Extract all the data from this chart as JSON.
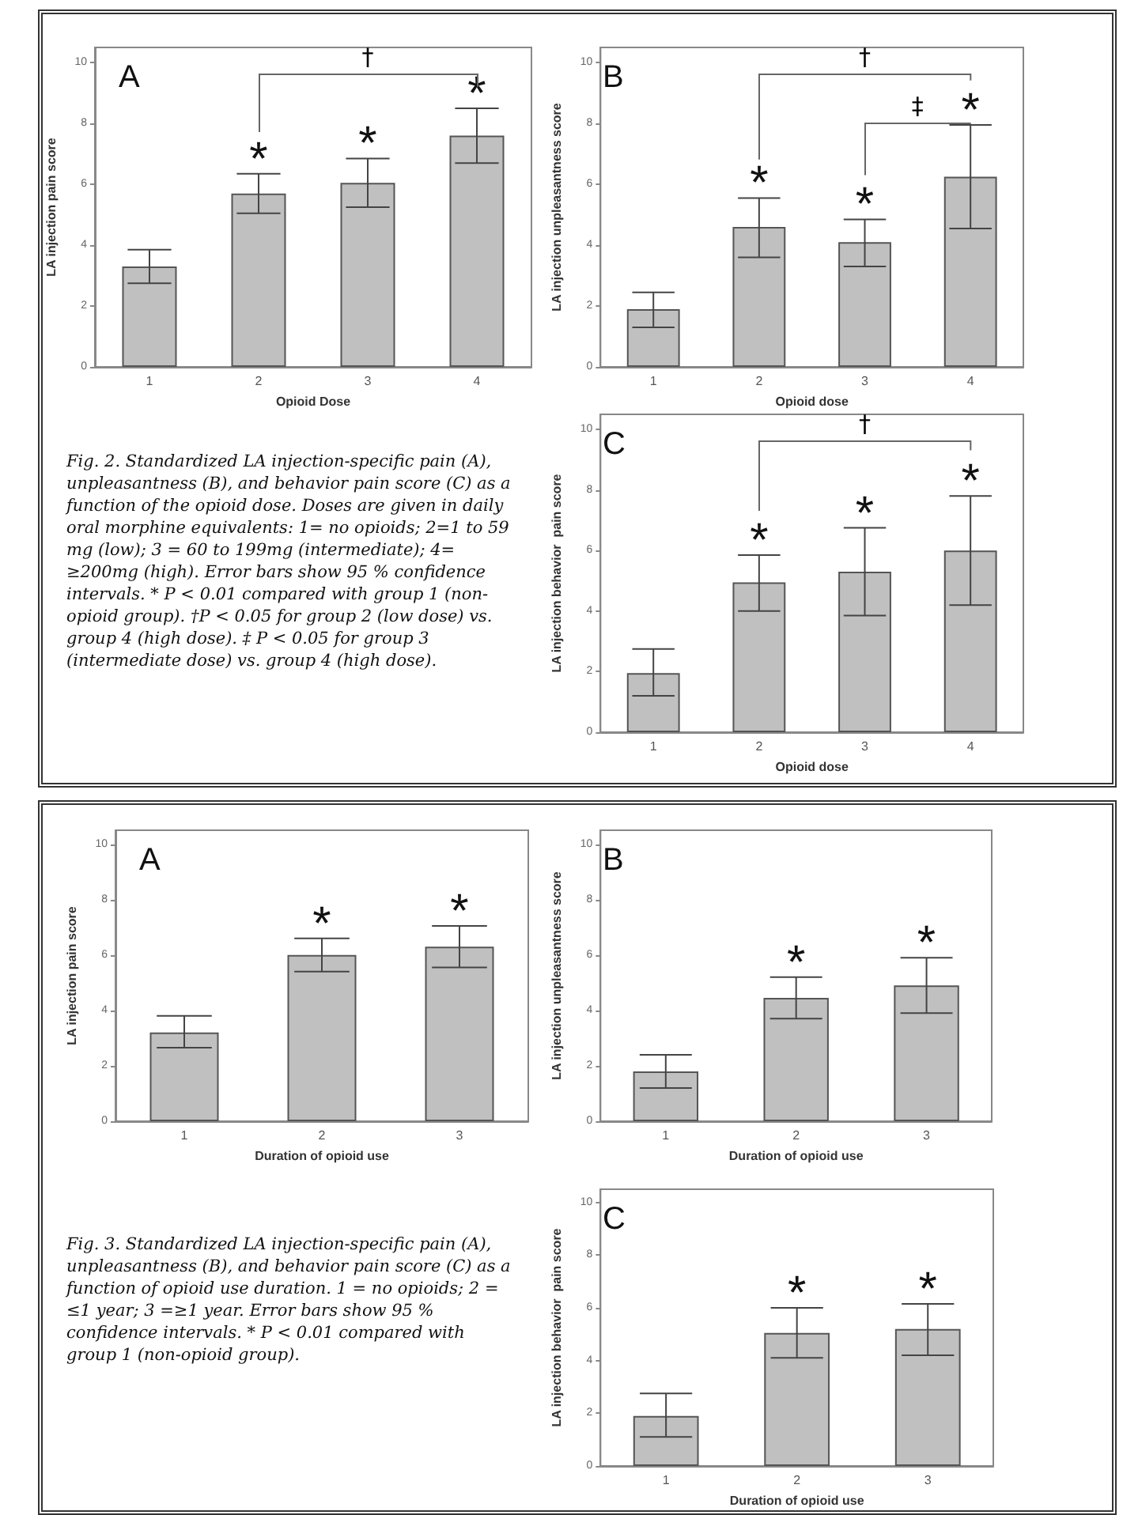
{
  "chart_data": [
    {
      "type": "bar",
      "title": "A",
      "xlabel": "Opioid Dose",
      "ylabel": "LA injection pain score",
      "categories": [
        "1",
        "2",
        "3",
        "4"
      ],
      "values": [
        3.3,
        5.7,
        6.05,
        7.6
      ],
      "errors": [
        [
          2.75,
          3.85
        ],
        [
          5.05,
          6.35
        ],
        [
          5.25,
          6.85
        ],
        [
          6.7,
          8.5
        ]
      ],
      "color": "#c0c0c0",
      "ylim": [
        0,
        10.5
      ],
      "yticks": [
        0,
        2,
        4,
        6,
        8,
        10
      ],
      "annotations": [
        {
          "text": "*",
          "x": "2",
          "y": 6.35
        },
        {
          "text": "*",
          "x": "3",
          "y": 6.85
        },
        {
          "text": "*",
          "x": "4",
          "y": 8.5
        },
        "†",
        "Fig. 2. Standardized LA injection-specific pain (A), unpleasantness (B), and behavior pain score (C) as a function of the opioid dose. Doses are given in daily oral morphine equivalents: 1= no opioids; 2=1 to 59 mg (low); 3 = 60 to 199mg (intermediate); 4= ≥200mg (high). Error bars show 95 % confidence intervals. * P < 0.01 compared with group 1 (non-opioid group). †P < 0.05 for group 2 (low dose) vs. group 4 (high dose). ‡ P < 0.05 for group 3 (intermediate dose) vs. group 4 (high dose)."
      ]
    },
    {
      "type": "bar",
      "title": "B",
      "xlabel": "Opioid dose",
      "ylabel": "LA injection unpleasantness score",
      "categories": [
        "1",
        "2",
        "3",
        "4"
      ],
      "values": [
        1.9,
        4.6,
        4.1,
        6.25
      ],
      "errors": [
        [
          1.3,
          2.45
        ],
        [
          3.6,
          5.55
        ],
        [
          3.3,
          4.85
        ],
        [
          4.55,
          7.95
        ]
      ],
      "color": "#c0c0c0",
      "ylim": [
        0,
        10.5
      ],
      "yticks": [
        0,
        2,
        4,
        6,
        8,
        10
      ],
      "annotations": [
        {
          "text": "*",
          "x": "2",
          "y": 5.55
        },
        {
          "text": "*",
          "x": "3",
          "y": 4.85
        },
        {
          "text": "*",
          "x": "4",
          "y": 7.95
        },
        "†",
        "‡"
      ]
    },
    {
      "type": "bar",
      "title": "C",
      "xlabel": "Opioid dose",
      "ylabel": "LA injection behavior  pain score",
      "categories": [
        "1",
        "2",
        "3",
        "4"
      ],
      "values": [
        1.95,
        4.95,
        5.3,
        6.0
      ],
      "errors": [
        [
          1.2,
          2.75
        ],
        [
          4.0,
          5.85
        ],
        [
          3.85,
          6.75
        ],
        [
          4.2,
          7.8
        ]
      ],
      "color": "#c0c0c0",
      "ylim": [
        0,
        10.5
      ],
      "yticks": [
        0,
        2,
        4,
        6,
        8,
        10
      ],
      "annotations": [
        {
          "text": "*",
          "x": "2",
          "y": 5.85
        },
        {
          "text": "*",
          "x": "3",
          "y": 6.75
        },
        {
          "text": "*",
          "x": "4",
          "y": 7.8
        },
        "†"
      ]
    },
    {
      "type": "bar",
      "title": "A",
      "xlabel": "Duration of opioid use",
      "ylabel": "LA injection pain score",
      "categories": [
        "1",
        "2",
        "3"
      ],
      "values": [
        3.2,
        6.0,
        6.3
      ],
      "errors": [
        [
          2.65,
          3.8
        ],
        [
          5.4,
          6.6
        ],
        [
          5.55,
          7.05
        ]
      ],
      "color": "#c0c0c0",
      "ylim": [
        0,
        10.5
      ],
      "yticks": [
        0,
        2,
        4,
        6,
        8,
        10
      ],
      "annotations": [
        {
          "text": "*",
          "x": "2",
          "y": 6.6
        },
        {
          "text": "*",
          "x": "3",
          "y": 7.05
        },
        "Fig. 3. Standardized LA injection-specific pain (A), unpleasantness (B), and behavior pain score (C) as a function of opioid use duration. 1 = no opioids; 2 = ≤1 year; 3 =≥1 year. Error bars show 95 % confidence intervals. * P < 0.01 compared with group 1 (non-opioid group)."
      ]
    },
    {
      "type": "bar",
      "title": "B",
      "xlabel": "Duration of opioid use",
      "ylabel": "LA injection unpleasantness score",
      "categories": [
        "1",
        "2",
        "3"
      ],
      "values": [
        1.8,
        4.45,
        4.9
      ],
      "errors": [
        [
          1.2,
          2.4
        ],
        [
          3.7,
          5.2
        ],
        [
          3.9,
          5.9
        ]
      ],
      "color": "#c0c0c0",
      "ylim": [
        0,
        10.5
      ],
      "yticks": [
        0,
        2,
        4,
        6,
        8,
        10
      ],
      "annotations": [
        {
          "text": "*",
          "x": "2",
          "y": 5.2
        },
        {
          "text": "*",
          "x": "3",
          "y": 5.9
        }
      ]
    },
    {
      "type": "bar",
      "title": "C",
      "xlabel": "Duration of opioid use",
      "ylabel": "LA injection behavior  pain score",
      "categories": [
        "1",
        "2",
        "3"
      ],
      "values": [
        1.9,
        5.05,
        5.2
      ],
      "errors": [
        [
          1.1,
          2.75
        ],
        [
          4.1,
          6.0
        ],
        [
          4.2,
          6.15
        ]
      ],
      "color": "#c0c0c0",
      "ylim": [
        0,
        10.5
      ],
      "yticks": [
        0,
        2,
        4,
        6,
        8,
        10
      ],
      "annotations": [
        {
          "text": "*",
          "x": "2",
          "y": 6.0
        },
        {
          "text": "*",
          "x": "3",
          "y": 6.15
        }
      ]
    }
  ]
}
